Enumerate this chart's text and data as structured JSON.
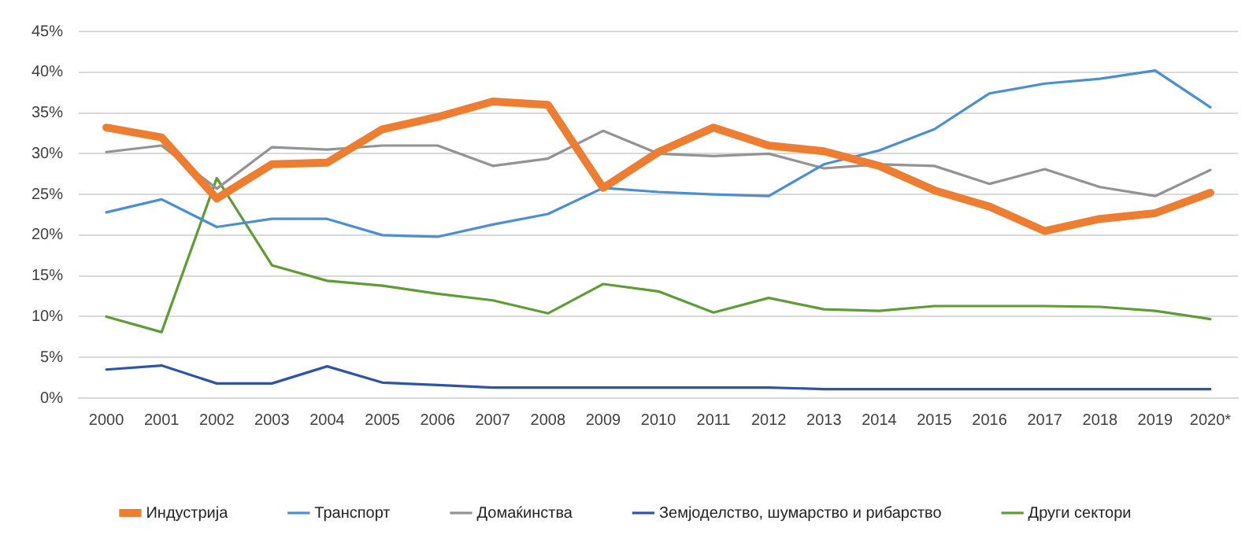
{
  "chart_data": {
    "type": "line",
    "categories": [
      "2000",
      "2001",
      "2002",
      "2003",
      "2004",
      "2005",
      "2006",
      "2007",
      "2008",
      "2009",
      "2010",
      "2011",
      "2012",
      "2013",
      "2014",
      "2015",
      "2016",
      "2017",
      "2018",
      "2019",
      "2020*"
    ],
    "series": [
      {
        "name": "Индустрија",
        "color": "#ed7d31",
        "values": [
          33.2,
          32,
          24.5,
          28.7,
          28.9,
          33,
          34.5,
          36.4,
          36,
          25.8,
          30.2,
          33.2,
          31,
          30.3,
          28.5,
          25.5,
          23.5,
          20.5,
          22,
          22.7,
          25.2
        ]
      },
      {
        "name": "Транспорт",
        "color": "#4a8fd3",
        "values": [
          22.8,
          24.4,
          21,
          22,
          22,
          20,
          19.8,
          21.3,
          22.6,
          25.8,
          25.3,
          25,
          24.8,
          28.7,
          30.4,
          33,
          37.4,
          38.6,
          39.2,
          40.2,
          35.7
        ]
      },
      {
        "name": "Домаќинства",
        "color": "#939393",
        "values": [
          30.2,
          31,
          25.7,
          30.8,
          30.5,
          31,
          31,
          28.5,
          29.4,
          32.8,
          30,
          29.7,
          30,
          28.2,
          28.7,
          28.5,
          26.3,
          28.1,
          25.9,
          24.8,
          28
        ]
      },
      {
        "name": "Земјоделство, шумарство и рибарство",
        "color": "#2e54a8",
        "values": [
          3.5,
          4,
          1.8,
          1.8,
          3.9,
          1.9,
          1.6,
          1.3,
          1.3,
          1.3,
          1.3,
          1.3,
          1.3,
          1.1,
          1.1,
          1.1,
          1.1,
          1.1,
          1.1,
          1.1,
          1.1
        ]
      },
      {
        "name": "Други сектори",
        "color": "#5e9c35",
        "values": [
          10,
          8.1,
          27,
          16.3,
          14.4,
          13.8,
          12.8,
          12,
          10.4,
          14,
          13.1,
          10.5,
          12.3,
          10.9,
          10.7,
          11.3,
          11.3,
          11.3,
          11.2,
          10.7,
          9.7
        ]
      }
    ],
    "ylim": [
      0,
      45
    ],
    "yticks": [
      {
        "value": 0,
        "label": "0%"
      },
      {
        "value": 5,
        "label": "5%"
      },
      {
        "value": 10,
        "label": "10%"
      },
      {
        "value": 15,
        "label": "15%"
      },
      {
        "value": 20,
        "label": "20%"
      },
      {
        "value": 25,
        "label": "25%"
      },
      {
        "value": 30,
        "label": "30%"
      },
      {
        "value": 35,
        "label": "35%"
      },
      {
        "value": 40,
        "label": "40%"
      },
      {
        "value": 45,
        "label": "45%"
      }
    ],
    "grid": "y",
    "legend": "bottom",
    "marker": "none",
    "line_style": "solid"
  }
}
